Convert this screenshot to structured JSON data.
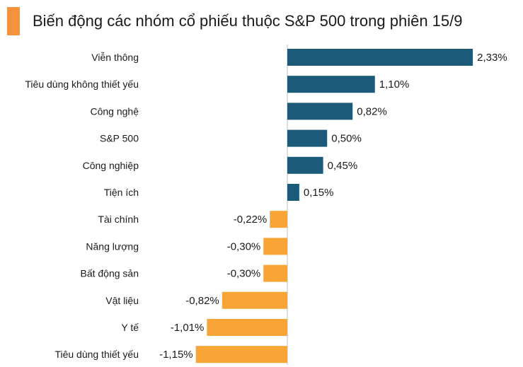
{
  "header": {
    "title": "Biến động các nhóm cổ phiếu thuộc S&P 500 trong phiên 15/9"
  },
  "colors": {
    "accent": "#f5923e",
    "positive": "#1c5a7a",
    "negative": "#f8a535",
    "axis": "#bfbfbf"
  },
  "chart_data": {
    "type": "bar",
    "orientation": "horizontal",
    "title": "Biến động các nhóm cổ phiếu thuộc S&P 500 trong phiên 15/9",
    "categories": [
      "Viễn thông",
      "Tiêu dùng không thiết yếu",
      "Công nghệ",
      "S&P 500",
      "Công nghiệp",
      "Tiện ích",
      "Tài chính",
      "Năng lượng",
      "Bất động sản",
      "Vật liệu",
      "Y tế",
      "Tiêu dùng thiết yếu"
    ],
    "values": [
      2.33,
      1.1,
      0.82,
      0.5,
      0.45,
      0.15,
      -0.22,
      -0.3,
      -0.3,
      -0.82,
      -1.01,
      -1.15
    ],
    "value_labels": [
      "2,33%",
      "1,10%",
      "0,82%",
      "0,50%",
      "0,45%",
      "0,15%",
      "-0,22%",
      "-0,30%",
      "-0,30%",
      "-0,82%",
      "-1,01%",
      "-1,15%"
    ],
    "unit": "%",
    "xlim": [
      -1.15,
      2.33
    ],
    "grid": false,
    "legend": "none"
  }
}
